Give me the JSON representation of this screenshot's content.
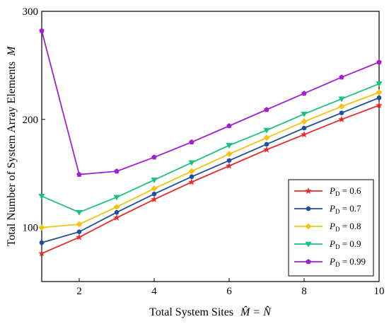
{
  "chart_data": {
    "type": "line",
    "xlabel": "Total System Sites",
    "xlabel_math": "M̂ = N̂",
    "ylabel": "Total Number of System Array Elements",
    "ylabel_math": "M",
    "xlim": [
      1,
      10
    ],
    "ylim": [
      50,
      300
    ],
    "x_ticks": [
      "2",
      "4",
      "6",
      "8",
      "10"
    ],
    "x_tick_values": [
      2,
      4,
      6,
      8,
      10
    ],
    "y_ticks": [
      "100",
      "200",
      "300"
    ],
    "y_tick_values": [
      100,
      200,
      300
    ],
    "grid": false,
    "legend_position": "bottom-right",
    "x": [
      1,
      2,
      3,
      4,
      5,
      6,
      7,
      8,
      9,
      10
    ],
    "series": [
      {
        "name": "P_D = 0.6",
        "legend_main": "P",
        "legend_sub": "D",
        "legend_rest": " = 0.6",
        "color": "#e8292a",
        "marker": "star",
        "values": [
          76,
          91,
          109,
          126,
          142,
          157,
          172,
          186,
          200,
          213
        ]
      },
      {
        "name": "P_D = 0.7",
        "legend_main": "P",
        "legend_sub": "D",
        "legend_rest": " = 0.7",
        "color": "#1f4e9c",
        "marker": "circle",
        "values": [
          86,
          96,
          114,
          131,
          147,
          162,
          177,
          192,
          206,
          220
        ]
      },
      {
        "name": "P_D = 0.8",
        "legend_main": "P",
        "legend_sub": "D",
        "legend_rest": " = 0.8",
        "color": "#f2c40f",
        "marker": "diamond",
        "values": [
          100,
          103,
          119,
          136,
          152,
          168,
          183,
          198,
          212,
          225
        ]
      },
      {
        "name": "P_D = 0.9",
        "legend_main": "P",
        "legend_sub": "D",
        "legend_rest": " = 0.9",
        "color": "#1cc27c",
        "marker": "triangle-down",
        "values": [
          129,
          114,
          128,
          144,
          160,
          176,
          190,
          205,
          219,
          233
        ]
      },
      {
        "name": "P_D = 0.99",
        "legend_main": "P",
        "legend_sub": "D",
        "legend_rest": " = 0.99",
        "color": "#a21fd0",
        "marker": "pentagon",
        "values": [
          282,
          149,
          152,
          165,
          179,
          194,
          209,
          224,
          239,
          253
        ]
      }
    ]
  }
}
